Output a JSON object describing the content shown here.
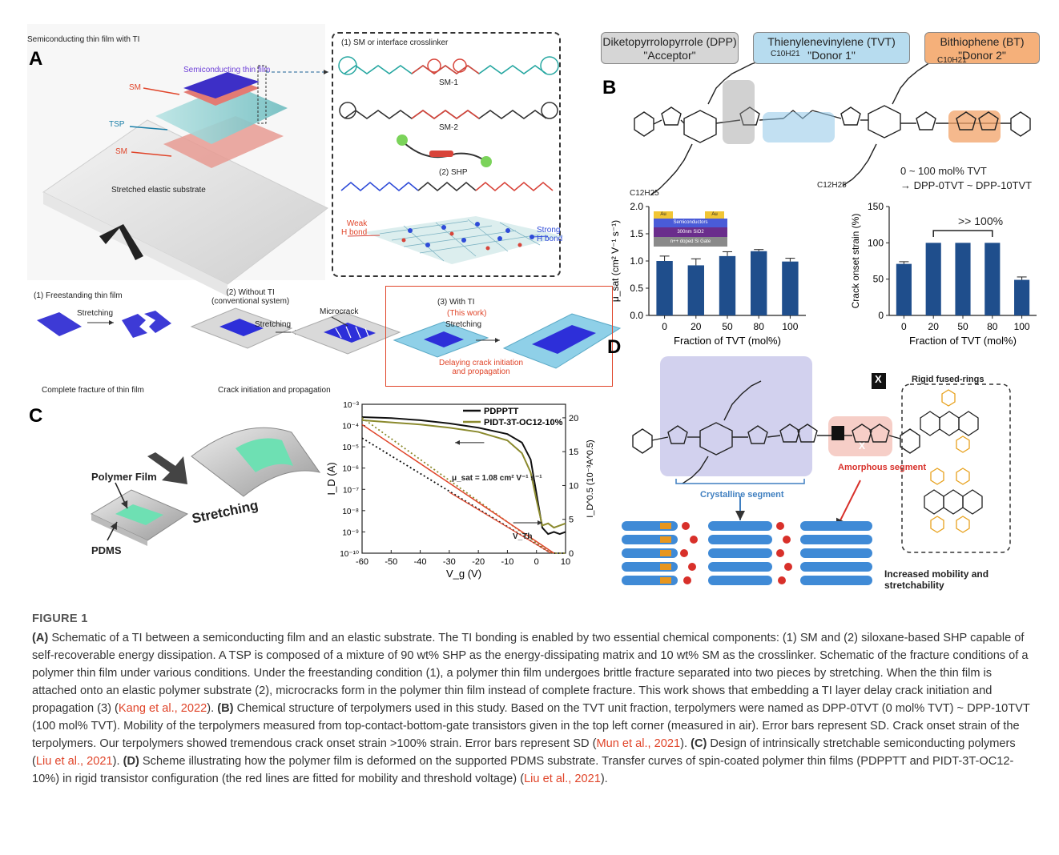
{
  "panel_a": {
    "letter": "A",
    "header": "Semiconducting thin film with TI",
    "semiconducting_label": "Semiconducting thin film",
    "sm_label_top": "SM",
    "tsp_label": "TSP",
    "sm_label_bottom": "SM",
    "substrate_label": "Stretched elastic substrate",
    "crosslinker_title": "(1) SM or interface crosslinker",
    "sm1": "SM-1",
    "sm2": "SM-2",
    "shp_title": "(2) SHP",
    "weak_hbond": "Weak\nH bond",
    "strong_hbond": "Strong\nH bond",
    "freestanding_title": "(1) Freestanding thin film",
    "stretching_1": "Stretching",
    "fracture_caption": "Complete fracture of thin film",
    "without_ti_title": "(2) Without TI\n(conventional system)",
    "stretching_2": "Stretching",
    "microcrack": "Microcrack",
    "crack_caption": "Crack initiation and propagation",
    "with_ti_title": "(3) With TI",
    "this_work": "(This work)",
    "stretching_3": "Stretching",
    "delay_caption": "Delaying crack initiation\nand propagation"
  },
  "panel_b": {
    "letter": "B",
    "units": [
      {
        "name": "Diketopyrrolopyrrole (DPP)",
        "role": "\"Acceptor\"",
        "color": "#d6d6d6"
      },
      {
        "name": "Thienylenevinylene (TVT)",
        "role": "\"Donor 1\"",
        "color": "#b7dcef"
      },
      {
        "name": "Bithiophene (BT)",
        "role": "\"Donor 2\"",
        "color": "#f5b07a"
      }
    ],
    "chain_label_1": "C10H21",
    "chain_label_2": "C12H25",
    "composition_1": "0 ~ 100 mol% TVT",
    "composition_2": "→ DPP-0TVT ~ DPP-10TVT",
    "inset_layers": [
      "Au",
      "Au",
      "Semiconductors",
      "300nm SiO2",
      "n++ doped Si Gate"
    ],
    "bracket_label": ">> 100%"
  },
  "panel_c": {
    "letter": "C",
    "polymer_film": "Polymer Film",
    "pdms": "PDMS",
    "stretching": "Stretching",
    "mu_annotation": "μ_sat = 1.08 cm² V⁻¹ s⁻¹",
    "vth_label": "V_Th"
  },
  "panel_d": {
    "letter": "D",
    "x_label": "X",
    "rigid_title": "Rigid fused-rings",
    "crystalline": "Crystalline segment",
    "amorphous": "Amorphous segment",
    "footer": "Increased mobility and stretchability"
  },
  "chart_data": [
    {
      "type": "bar",
      "categories": [
        "0",
        "20",
        "50",
        "80",
        "100"
      ],
      "values": [
        1.0,
        0.92,
        1.09,
        1.18,
        0.99
      ],
      "errors": [
        0.09,
        0.12,
        0.08,
        0.03,
        0.06
      ],
      "xlabel": "Fraction of TVT (mol%)",
      "ylabel": "μ_sat (cm² V⁻¹ s⁻¹)",
      "yticks": [
        "0.0",
        "0.5",
        "1.0",
        "1.5",
        "2.0"
      ],
      "ylim": [
        0,
        2.0
      ],
      "bar_color": "#1f4e8c"
    },
    {
      "type": "bar",
      "categories": [
        "0",
        "20",
        "50",
        "80",
        "100"
      ],
      "values": [
        71,
        100,
        100,
        100,
        49
      ],
      "errors": [
        3,
        0,
        0,
        0,
        4
      ],
      "xlabel": "Fraction of TVT (mol%)",
      "ylabel": "Crack onset strain (%)",
      "yticks": [
        "0",
        "50",
        "100",
        "150"
      ],
      "ylim": [
        0,
        150
      ],
      "bar_color": "#1f4e8c"
    },
    {
      "type": "line",
      "xlabel": "V_g (V)",
      "ylabel": "I_D (A)",
      "y2label": "I_D^0.5 (10⁻³A^0.5)",
      "xticks": [
        "-60",
        "-50",
        "-40",
        "-30",
        "-20",
        "-10",
        "0",
        "10"
      ],
      "xlim": [
        -60,
        10
      ],
      "yticks_log": [
        "10⁻³",
        "10⁻⁴",
        "10⁻⁵",
        "10⁻⁶",
        "10⁻⁷",
        "10⁻⁸",
        "10⁻⁹",
        "10⁻¹⁰"
      ],
      "ylim_log_exp": [
        -10,
        -3
      ],
      "y2ticks": [
        "0",
        "5",
        "10",
        "15",
        "20"
      ],
      "y2lim": [
        0,
        22
      ],
      "series": [
        {
          "name": "PDPPTT",
          "color": "#111111",
          "x": [
            -60,
            -50,
            -40,
            -30,
            -20,
            -10,
            -5,
            -2,
            0,
            2,
            4,
            6,
            8,
            10
          ],
          "logy": [
            -3.6,
            -3.65,
            -3.75,
            -3.9,
            -4.1,
            -4.4,
            -4.8,
            -5.6,
            -7.2,
            -8.8,
            -9.1,
            -9.0,
            -9.1,
            -9.0
          ]
        },
        {
          "name": "PIDT-3T-OC12-10%",
          "color": "#8b8a2e",
          "x": [
            -60,
            -50,
            -40,
            -30,
            -20,
            -10,
            -5,
            -2,
            0,
            2,
            4,
            6,
            8,
            10
          ],
          "logy": [
            -3.75,
            -3.85,
            -3.95,
            -4.1,
            -4.3,
            -4.7,
            -5.3,
            -6.2,
            -7.5,
            -8.7,
            -8.6,
            -8.8,
            -8.7,
            -8.6
          ]
        }
      ]
    }
  ],
  "caption": {
    "figure_label": "FIGURE 1",
    "paragraphs": [
      {
        "tag": "(A)",
        "text": " Schematic of a TI between a semiconducting film and an elastic substrate. The TI bonding is enabled by two essential chemical components: (1) SM and (2) siloxane-based SHP capable of self-recoverable energy dissipation. A TSP is composed of a mixture of 90 wt% SHP as the energy-dissipating matrix and 10 wt% SM as the crosslinker. Schematic of the fracture conditions of a polymer thin film under various conditions. Under the freestanding condition (1), a polymer thin film undergoes brittle fracture separated into two pieces by stretching. When the thin film is attached onto an elastic polymer substrate (2), microcracks form in the polymer thin film instead of complete fracture. This work shows that embedding a TI layer delay crack initiation and propagation (3) (",
        "cite": "Kang et al., 2022",
        "after": "). "
      },
      {
        "tag": "(B)",
        "text": " Chemical structure of terpolymers used in this study. Based on the TVT unit fraction, terpolymers were named as DPP-0TVT (0 mol% TVT) ~ DPP-10TVT (100 mol% TVT). Mobility of the terpolymers measured from top-contact-bottom-gate transistors given in the top left corner (measured in air). Error bars represent SD. Crack onset strain of the terpolymers. Our terpolymers showed tremendous crack onset strain >100% strain. Error bars represent SD (",
        "cite": "Mun et al., 2021",
        "after": "). "
      },
      {
        "tag": "(C)",
        "text": " Design of intrinsically stretchable semiconducting polymers (",
        "cite": "Liu et al., 2021",
        "after": "). "
      },
      {
        "tag": "(D)",
        "text": " Scheme illustrating how the polymer film is deformed on the supported PDMS substrate. Transfer curves of spin-coated polymer thin films (PDPPTT and PIDT-3T-OC12-10%) in rigid transistor configuration (the red lines are fitted for mobility and threshold voltage) (",
        "cite": "Liu et al., 2021",
        "after": ")."
      }
    ]
  }
}
